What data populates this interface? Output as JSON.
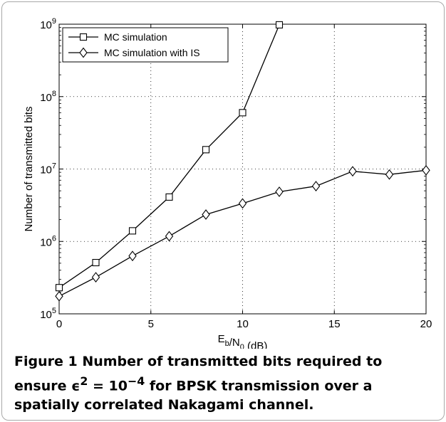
{
  "chart_data": {
    "type": "line",
    "xlabel": "E_b/N_0 (dB)",
    "ylabel": "Number of transmitted bits",
    "xlim": [
      0,
      20
    ],
    "ylim": [
      100000,
      1000000000
    ],
    "yscale": "log",
    "grid": "dotted",
    "legend_position": "top-left",
    "x_ticks": [
      "0",
      "5",
      "10",
      "15",
      "20"
    ],
    "y_ticks": [
      "10^5",
      "10^6",
      "10^7",
      "10^8",
      "10^9"
    ],
    "series": [
      {
        "name": "MC simulation",
        "marker": "square",
        "x": [
          0,
          2,
          4,
          6,
          8,
          10,
          12
        ],
        "y": [
          230000,
          510000,
          1400000,
          4100000,
          18500000,
          60000000,
          980000000
        ]
      },
      {
        "name": "MC simulation with IS",
        "marker": "diamond",
        "x": [
          0,
          2,
          4,
          6,
          8,
          10,
          12,
          14,
          16,
          18,
          20
        ],
        "y": [
          175000,
          320000,
          630000,
          1180000,
          2350000,
          3350000,
          4850000,
          5800000,
          9300000,
          8400000,
          9600000
        ]
      }
    ]
  },
  "caption": {
    "label": "Figure 1",
    "text_part1": " Number of transmitted bits required to ensure ",
    "epsilon": "ϵ",
    "sup2": "2",
    "eq": " = 10",
    "sup_exp": "−4",
    "text_part2": " for BPSK transmission over a spatially correlated Nakagami channel."
  }
}
